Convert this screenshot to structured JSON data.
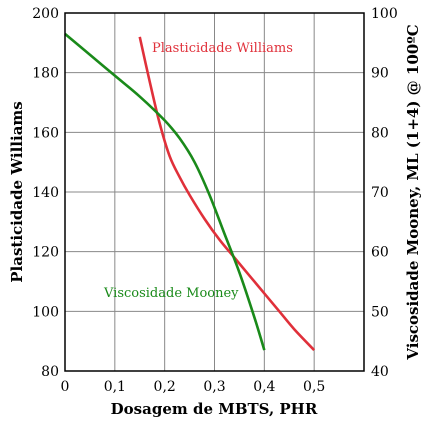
{
  "chart_data": {
    "type": "line",
    "xlabel": "Dosagem de MBTS, PHR",
    "ylabel_left": "Plasticidade Williams",
    "ylabel_right": "Viscosidade Mooney, ML (1+4) @ 100ºC",
    "xlim": [
      0,
      0.6
    ],
    "ylim_left": [
      80,
      200
    ],
    "ylim_right": [
      40,
      100
    ],
    "x_ticks": [
      "0",
      "0,1",
      "0,2",
      "0,3",
      "0,4",
      "0,5"
    ],
    "x_tick_values": [
      0,
      0.1,
      0.2,
      0.3,
      0.4,
      0.5
    ],
    "y_left_ticks": [
      "80",
      "100",
      "120",
      "140",
      "160",
      "180",
      "200"
    ],
    "y_left_tick_values": [
      80,
      100,
      120,
      140,
      160,
      180,
      200
    ],
    "y_right_ticks": [
      "40",
      "50",
      "60",
      "70",
      "80",
      "90",
      "100"
    ],
    "y_right_tick_values": [
      40,
      50,
      60,
      70,
      80,
      90,
      100
    ],
    "grid": true,
    "series": [
      {
        "name": "Plasticidade Williams",
        "axis": "left",
        "color": "#e0303a",
        "x": [
          0.15,
          0.17,
          0.19,
          0.21,
          0.23,
          0.25,
          0.28,
          0.31,
          0.34,
          0.37,
          0.4,
          0.43,
          0.46,
          0.5
        ],
        "y": [
          192,
          177,
          163,
          152,
          145,
          139,
          131,
          124,
          118,
          112,
          106,
          100,
          94,
          87
        ]
      },
      {
        "name": "Viscosidade Mooney",
        "axis": "right",
        "color": "#1a8a1a",
        "x": [
          0,
          0.05,
          0.1,
          0.15,
          0.2,
          0.23,
          0.26,
          0.29,
          0.32,
          0.35,
          0.38,
          0.4
        ],
        "y": [
          96.5,
          93,
          89.5,
          86,
          82,
          79,
          75,
          69.5,
          63,
          56.5,
          49,
          43.5
        ]
      }
    ]
  }
}
